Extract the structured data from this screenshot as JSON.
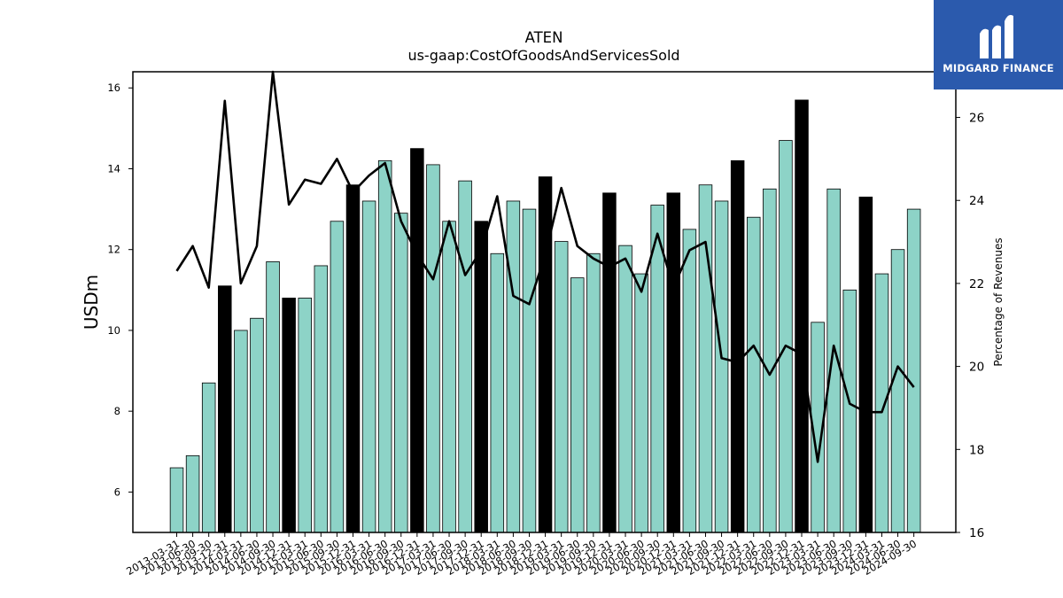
{
  "logo": {
    "text": "MIDGARD FINANCE",
    "bg": "#2b5aad"
  },
  "chart_data": {
    "type": "bar",
    "title": "ATEN",
    "subtitle": "us-gaap:CostOfGoodsAndServicesSold",
    "ylabel": "USDm",
    "y2label": "Percentage of Revenues",
    "ylim": [
      5.0,
      16.4
    ],
    "y2lim": [
      16,
      27.1
    ],
    "yticks": [
      6,
      8,
      10,
      12,
      14,
      16
    ],
    "y2ticks": [
      16,
      18,
      20,
      22,
      24,
      26
    ],
    "colors": {
      "bar": "#8dd3c7",
      "bar_q4": "#000000",
      "line": "#000000"
    },
    "categories": [
      "2013-03-31",
      "2013-06-30",
      "2013-09-30",
      "2013-12-31",
      "2014-03-31",
      "2014-06-30",
      "2014-09-30",
      "2014-12-31",
      "2015-03-31",
      "2015-06-30",
      "2015-09-30",
      "2015-12-31",
      "2016-03-31",
      "2016-06-30",
      "2016-09-30",
      "2016-12-31",
      "2017-03-31",
      "2017-06-30",
      "2017-09-30",
      "2017-12-31",
      "2018-03-31",
      "2018-06-30",
      "2018-09-30",
      "2018-12-31",
      "2019-03-31",
      "2019-06-30",
      "2019-09-30",
      "2019-12-31",
      "2020-03-31",
      "2020-06-30",
      "2020-09-30",
      "2020-12-31",
      "2021-03-31",
      "2021-06-30",
      "2021-09-30",
      "2021-12-31",
      "2022-03-31",
      "2022-06-30",
      "2022-09-30",
      "2022-12-31",
      "2023-03-31",
      "2023-06-30",
      "2023-09-30",
      "2023-12-31",
      "2024-03-31",
      "2024-06-30",
      "2024-09-30"
    ],
    "series": [
      {
        "type": "bar",
        "values": [
          6.6,
          6.9,
          8.7,
          11.1,
          10.0,
          10.3,
          11.7,
          10.8,
          10.8,
          11.6,
          12.7,
          13.6,
          13.2,
          14.2,
          12.9,
          14.5,
          14.1,
          12.7,
          13.7,
          12.7,
          11.9,
          13.2,
          13.0,
          13.8,
          12.2,
          11.3,
          11.9,
          13.4,
          12.1,
          11.4,
          13.1,
          13.4,
          12.5,
          13.6,
          13.2,
          14.2,
          12.8,
          13.5,
          14.7,
          15.7,
          10.2,
          13.5,
          11.0,
          13.3,
          11.4,
          12.0,
          13.0
        ],
        "highlight": [
          false,
          false,
          false,
          true,
          false,
          false,
          false,
          true,
          false,
          false,
          false,
          true,
          false,
          false,
          false,
          true,
          false,
          false,
          false,
          true,
          false,
          false,
          false,
          true,
          false,
          false,
          false,
          true,
          false,
          false,
          false,
          true,
          false,
          false,
          false,
          true,
          false,
          false,
          false,
          true,
          false,
          false,
          false,
          true,
          false,
          false,
          false
        ]
      },
      {
        "type": "line",
        "axis": "right",
        "values": [
          22.3,
          22.9,
          21.9,
          26.4,
          22.0,
          22.9,
          27.1,
          23.9,
          24.5,
          24.4,
          25.0,
          24.2,
          24.6,
          24.9,
          23.5,
          22.7,
          22.1,
          23.5,
          22.2,
          22.8,
          24.1,
          21.7,
          21.5,
          22.7,
          24.3,
          22.9,
          22.6,
          22.4,
          22.6,
          21.8,
          23.2,
          21.9,
          22.8,
          23.0,
          20.2,
          20.1,
          20.5,
          19.8,
          20.5,
          20.3,
          17.7,
          20.5,
          19.1,
          18.9,
          18.9,
          20.0,
          19.5
        ]
      }
    ]
  }
}
